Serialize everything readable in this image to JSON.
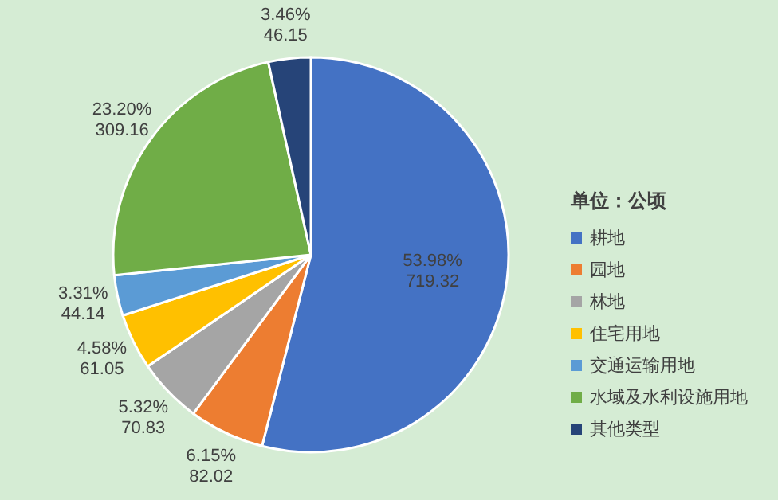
{
  "chart_data": {
    "type": "pie",
    "legend_title": "单位：公顷",
    "legend": "right",
    "categories": [
      "耕地",
      "园地",
      "林地",
      "住宅用地",
      "交通运输用地",
      "水域及水利设施用地",
      "其他类型"
    ],
    "values": [
      719.32,
      82.02,
      70.83,
      61.05,
      44.14,
      309.16,
      46.15
    ],
    "colors": [
      "#4472c4",
      "#ed7d31",
      "#a5a5a5",
      "#ffc000",
      "#5b9bd5",
      "#70ad47",
      "#264478"
    ],
    "value_labels": [
      "53.98%\n719.32",
      "6.15%\n82.02",
      "5.32%\n70.83",
      "4.58%\n61.05",
      "3.31%\n44.14",
      "23.20%\n309.16",
      "3.46%\n46.15"
    ]
  }
}
